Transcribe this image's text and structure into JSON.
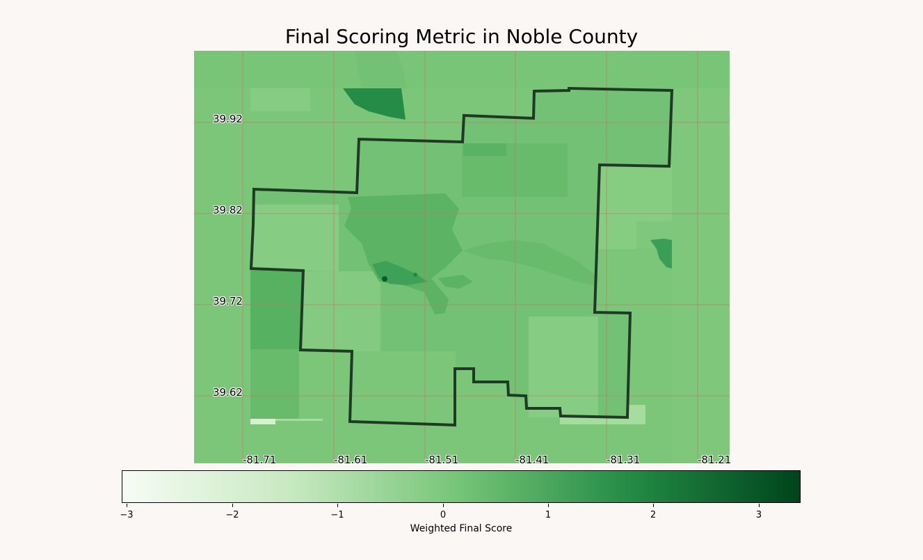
{
  "title": "Final Scoring Metric in Noble County",
  "map": {
    "latitude_labels": [
      "39.92",
      "39.82",
      "39.72",
      "39.62"
    ],
    "longitude_labels": [
      "-81.71",
      "-81.61",
      "-81.51",
      "-81.41",
      "-81.31",
      "-81.21"
    ],
    "gridline_color": "#c8746a",
    "boundary_color": "#1f3a24"
  },
  "colorbar": {
    "label": "Weighted Final Score",
    "colormap": "Greens",
    "tick_labels": [
      "−3",
      "−2",
      "−1",
      "0",
      "1",
      "2",
      "3"
    ],
    "range": [
      -3.05,
      3.4
    ],
    "colors": [
      "#f7fcf5",
      "#c7e9c0",
      "#74c476",
      "#238b45",
      "#00441b"
    ]
  }
}
